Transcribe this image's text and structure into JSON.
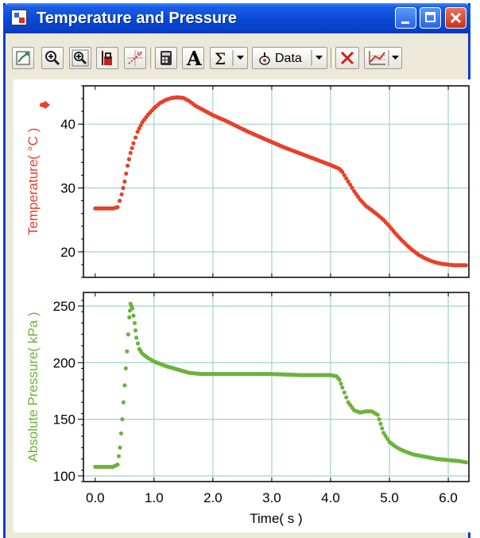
{
  "window": {
    "title": "Temperature and Pressure",
    "controls": [
      "minimize",
      "maximize",
      "close"
    ]
  },
  "toolbar": {
    "buttons": [
      {
        "name": "autoscale",
        "icon": "autoscale-icon"
      },
      {
        "name": "zoom-in",
        "icon": "zoom-in-icon"
      },
      {
        "name": "zoom-out",
        "icon": "zoom-out-icon"
      },
      {
        "name": "examine",
        "icon": "examine-icon"
      },
      {
        "name": "tangent",
        "icon": "tangent-icon"
      },
      {
        "name": "statistics-table",
        "icon": "calculator-icon"
      },
      {
        "name": "annotate",
        "label": "A"
      },
      {
        "name": "statistics",
        "label": "Σ"
      },
      {
        "name": "data-select",
        "label": "Data"
      },
      {
        "name": "remove",
        "icon": "delete-x-icon"
      },
      {
        "name": "graph-options",
        "icon": "graph-options-icon"
      }
    ]
  },
  "colors": {
    "temperature": "#E8402A",
    "pressure": "#6CB33C",
    "grid": "#9FD6C8"
  },
  "chart_data": [
    {
      "type": "scatter",
      "ylabel": "Temperature( °C )",
      "xlim": [
        -0.2,
        6.35
      ],
      "ylim": [
        16,
        46
      ],
      "y_ticks": [
        20,
        30,
        40
      ],
      "grid": true,
      "series": [
        {
          "points": [
            [
              0.0,
              26.8
            ],
            [
              0.1,
              26.8
            ],
            [
              0.2,
              26.8
            ],
            [
              0.3,
              26.8
            ],
            [
              0.38,
              27.0
            ],
            [
              0.45,
              29.0
            ],
            [
              0.5,
              31.0
            ],
            [
              0.55,
              33.5
            ],
            [
              0.6,
              35.5
            ],
            [
              0.65,
              37.0
            ],
            [
              0.72,
              38.8
            ],
            [
              0.8,
              40.3
            ],
            [
              0.9,
              41.5
            ],
            [
              1.0,
              42.5
            ],
            [
              1.1,
              43.3
            ],
            [
              1.2,
              43.8
            ],
            [
              1.3,
              44.1
            ],
            [
              1.4,
              44.2
            ],
            [
              1.5,
              44.1
            ],
            [
              1.6,
              43.6
            ],
            [
              1.7,
              42.9
            ],
            [
              1.8,
              42.4
            ],
            [
              2.0,
              41.4
            ],
            [
              2.2,
              40.6
            ],
            [
              2.4,
              39.7
            ],
            [
              2.6,
              38.8
            ],
            [
              2.8,
              38.0
            ],
            [
              3.0,
              37.2
            ],
            [
              3.2,
              36.4
            ],
            [
              3.4,
              35.7
            ],
            [
              3.6,
              35.0
            ],
            [
              3.8,
              34.3
            ],
            [
              4.0,
              33.6
            ],
            [
              4.15,
              33.0
            ],
            [
              4.2,
              32.5
            ],
            [
              4.3,
              31.0
            ],
            [
              4.4,
              29.5
            ],
            [
              4.5,
              28.2
            ],
            [
              4.6,
              27.2
            ],
            [
              4.7,
              26.5
            ],
            [
              4.8,
              25.8
            ],
            [
              4.9,
              25.0
            ],
            [
              5.0,
              24.0
            ],
            [
              5.1,
              22.9
            ],
            [
              5.2,
              21.9
            ],
            [
              5.3,
              21.0
            ],
            [
              5.4,
              20.2
            ],
            [
              5.5,
              19.5
            ],
            [
              5.6,
              19.0
            ],
            [
              5.7,
              18.6
            ],
            [
              5.8,
              18.3
            ],
            [
              5.9,
              18.1
            ],
            [
              6.0,
              18.0
            ],
            [
              6.1,
              17.9
            ],
            [
              6.2,
              17.9
            ],
            [
              6.3,
              17.9
            ]
          ]
        }
      ]
    },
    {
      "type": "scatter",
      "xlabel": "Time( s )",
      "ylabel": "Absolute Pressure( kPa )",
      "xlim": [
        -0.2,
        6.35
      ],
      "ylim": [
        95,
        262
      ],
      "x_ticks": [
        0.0,
        1.0,
        2.0,
        3.0,
        4.0,
        5.0,
        6.0
      ],
      "x_tick_labels": [
        "0.0",
        "1.0",
        "2.0",
        "3.0",
        "4.0",
        "5.0",
        "6.0"
      ],
      "y_ticks": [
        100,
        150,
        200,
        250
      ],
      "grid": true,
      "series": [
        {
          "points": [
            [
              0.0,
              108
            ],
            [
              0.1,
              108
            ],
            [
              0.2,
              108
            ],
            [
              0.3,
              108
            ],
            [
              0.38,
              110
            ],
            [
              0.42,
              125
            ],
            [
              0.46,
              150
            ],
            [
              0.5,
              180
            ],
            [
              0.54,
              210
            ],
            [
              0.58,
              240
            ],
            [
              0.6,
              252
            ],
            [
              0.63,
              248
            ],
            [
              0.67,
              235
            ],
            [
              0.7,
              222
            ],
            [
              0.75,
              212
            ],
            [
              0.8,
              208
            ],
            [
              0.9,
              204
            ],
            [
              1.0,
              201
            ],
            [
              1.2,
              197
            ],
            [
              1.4,
              194
            ],
            [
              1.6,
              191
            ],
            [
              1.8,
              190
            ],
            [
              2.0,
              190
            ],
            [
              2.5,
              190
            ],
            [
              3.0,
              190
            ],
            [
              3.5,
              189
            ],
            [
              4.0,
              189
            ],
            [
              4.1,
              188
            ],
            [
              4.15,
              185
            ],
            [
              4.2,
              178
            ],
            [
              4.3,
              165
            ],
            [
              4.4,
              158
            ],
            [
              4.5,
              156
            ],
            [
              4.6,
              157
            ],
            [
              4.7,
              157
            ],
            [
              4.8,
              154
            ],
            [
              4.85,
              146
            ],
            [
              4.9,
              138
            ],
            [
              5.0,
              130
            ],
            [
              5.1,
              126
            ],
            [
              5.2,
              123
            ],
            [
              5.4,
              119
            ],
            [
              5.6,
              117
            ],
            [
              5.8,
              115
            ],
            [
              6.0,
              114
            ],
            [
              6.2,
              113
            ],
            [
              6.3,
              112
            ]
          ]
        }
      ]
    }
  ]
}
